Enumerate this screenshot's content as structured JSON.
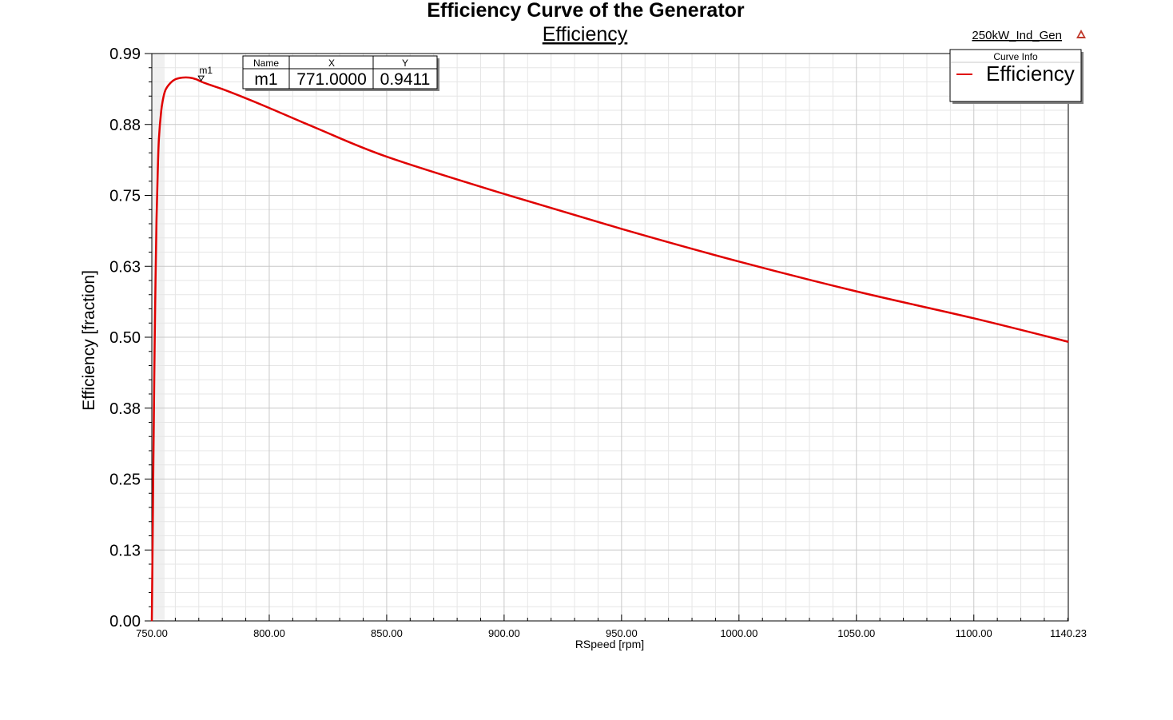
{
  "header": {
    "title": "Efficiency Curve of the Generator",
    "subtitle": "Efficiency",
    "design_name": "250kW_Ind_Gen",
    "design_icon": "ansys-maxwell-icon"
  },
  "colors": {
    "series": "#e00000",
    "grid_major": "#c8c8c8",
    "grid_minor": "#e6e6e6",
    "axis": "#000000",
    "shade": "#f0f0f0"
  },
  "marker_table": {
    "headers": [
      "Name",
      "X",
      "Y"
    ],
    "rows": [
      [
        "m1",
        "771.0000",
        "0.9411"
      ]
    ]
  },
  "legend": {
    "title": "Curve Info",
    "entries": [
      "Efficiency"
    ]
  },
  "chart_data": {
    "type": "line",
    "title": "Efficiency Curve of the Generator",
    "subtitle": "Efficiency",
    "xlabel": "RSpeed [rpm]",
    "ylabel": "Efficiency [fraction]",
    "xlim": [
      750,
      1140.23
    ],
    "ylim": [
      0,
      0.99
    ],
    "x_ticks": [
      "750.00",
      "800.00",
      "850.00",
      "900.00",
      "950.00",
      "1000.00",
      "1050.00",
      "1100.00",
      "1140.23"
    ],
    "y_ticks": [
      "0.00",
      "0.13",
      "0.25",
      "0.38",
      "0.50",
      "0.63",
      "0.75",
      "0.88",
      "0.99"
    ],
    "grid": true,
    "legend_position": "top-right",
    "series": [
      {
        "name": "Efficiency",
        "x": [
          750.0,
          750.3,
          750.6,
          750.9,
          751.2,
          751.6,
          752.0,
          752.5,
          753.0,
          754.0,
          755.0,
          756.0,
          758.0,
          760.0,
          763.0,
          766.0,
          769.0,
          771.0,
          775.0,
          780.0,
          790.0,
          800.0,
          820.0,
          850.0,
          900.0,
          950.0,
          1000.0,
          1050.0,
          1100.0,
          1140.23
        ],
        "values": [
          0.0,
          0.12,
          0.25,
          0.37,
          0.48,
          0.6,
          0.7,
          0.78,
          0.84,
          0.89,
          0.915,
          0.928,
          0.939,
          0.945,
          0.948,
          0.948,
          0.945,
          0.941,
          0.935,
          0.928,
          0.912,
          0.895,
          0.86,
          0.81,
          0.745,
          0.684,
          0.627,
          0.575,
          0.528,
          0.487
        ]
      }
    ],
    "markers": [
      {
        "name": "m1",
        "x": 771.0,
        "y": 0.9411
      }
    ]
  }
}
